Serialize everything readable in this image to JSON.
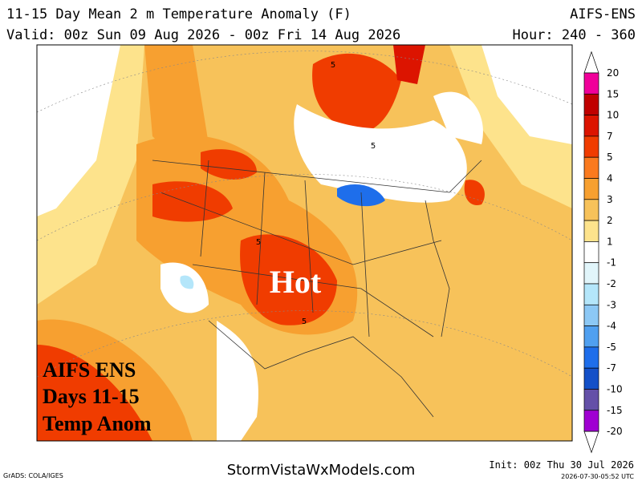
{
  "header": {
    "title": "11-15 Day Mean 2 m Temperature Anomaly (F)",
    "model": "AIFS-ENS",
    "valid": "Valid: 00z Sun 09 Aug 2026 - 00z Fri 14 Aug 2026",
    "hour": "Hour: 240 - 360"
  },
  "map": {
    "annotation": "Hot",
    "overlay": [
      "AIFS ENS",
      "Days 11-15",
      "Temp Anom"
    ],
    "contour_labels": [
      "5",
      "5",
      "5",
      "5"
    ]
  },
  "colorbar": {
    "levels": [
      20,
      15,
      10,
      7,
      5,
      4,
      3,
      2,
      1,
      -1,
      -2,
      -3,
      -4,
      -5,
      -7,
      -10,
      -15,
      -20
    ],
    "colors": [
      "#ffffff",
      "#f0009a",
      "#c00000",
      "#dc1400",
      "#f03c00",
      "#fa7a1e",
      "#f7a030",
      "#f7c25a",
      "#fde38c",
      "#ffffff",
      "#e1f5fa",
      "#b4e6fa",
      "#8cc8f5",
      "#50a0f0",
      "#1e6eeb",
      "#1450c8",
      "#6450a8",
      "#a000d2",
      "#ffffff"
    ]
  },
  "footer": {
    "credit": "GrADS: COLA/IGES",
    "site": "StormVistaWxModels.com",
    "init": "Init: 00z Thu 30 Jul 2026",
    "stamp": "2026-07-30-05:52 UTC"
  }
}
